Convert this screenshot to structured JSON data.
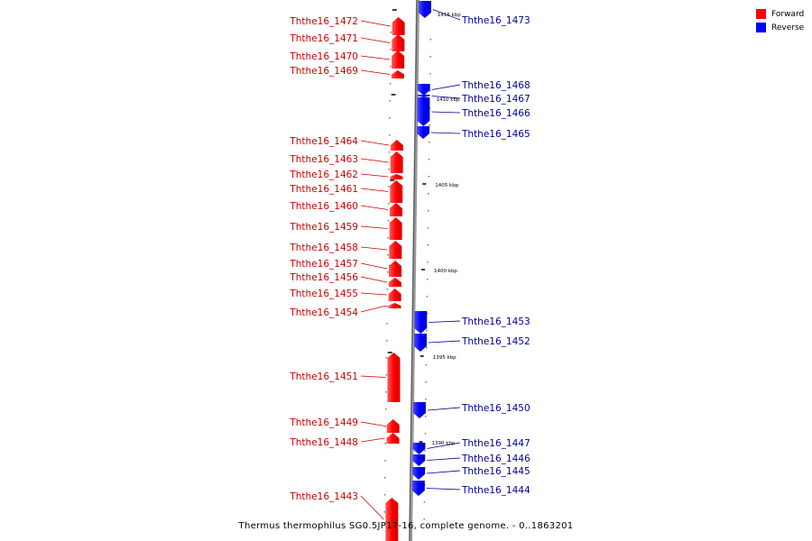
{
  "caption": "Thermus thermophilus SG0.5JP17-16, complete genome. - 0..1863201",
  "legend": [
    {
      "label": "Forward",
      "color": "#ff0000"
    },
    {
      "label": "Reverse",
      "color": "#0000ff"
    }
  ],
  "colors": {
    "forward": "#ff0000",
    "reverse": "#0000ff",
    "forward_label": "#cc0000",
    "reverse_label": "#000099"
  },
  "ticks": [
    "1415 kbp",
    "1410 kbp",
    "1405 kbp",
    "1400 kbp",
    "1395 kbp",
    "1390 kbp"
  ],
  "genes": [
    {
      "name": "Ththe16_1473",
      "strand": "reverse"
    },
    {
      "name": "Ththe16_1472",
      "strand": "forward"
    },
    {
      "name": "Ththe16_1471",
      "strand": "forward"
    },
    {
      "name": "Ththe16_1470",
      "strand": "forward"
    },
    {
      "name": "Ththe16_1469",
      "strand": "forward"
    },
    {
      "name": "Ththe16_1468",
      "strand": "reverse"
    },
    {
      "name": "Ththe16_1467",
      "strand": "reverse"
    },
    {
      "name": "Ththe16_1466",
      "strand": "reverse"
    },
    {
      "name": "Ththe16_1465",
      "strand": "reverse"
    },
    {
      "name": "Ththe16_1464",
      "strand": "forward"
    },
    {
      "name": "Ththe16_1463",
      "strand": "forward"
    },
    {
      "name": "Ththe16_1462",
      "strand": "forward"
    },
    {
      "name": "Ththe16_1461",
      "strand": "forward"
    },
    {
      "name": "Ththe16_1460",
      "strand": "forward"
    },
    {
      "name": "Ththe16_1459",
      "strand": "forward"
    },
    {
      "name": "Ththe16_1458",
      "strand": "forward"
    },
    {
      "name": "Ththe16_1457",
      "strand": "forward"
    },
    {
      "name": "Ththe16_1456",
      "strand": "forward"
    },
    {
      "name": "Ththe16_1455",
      "strand": "forward"
    },
    {
      "name": "Ththe16_1454",
      "strand": "forward"
    },
    {
      "name": "Ththe16_1453",
      "strand": "reverse"
    },
    {
      "name": "Ththe16_1452",
      "strand": "reverse"
    },
    {
      "name": "Ththe16_1451",
      "strand": "forward"
    },
    {
      "name": "Ththe16_1450",
      "strand": "reverse"
    },
    {
      "name": "Ththe16_1449",
      "strand": "forward"
    },
    {
      "name": "Ththe16_1448",
      "strand": "forward"
    },
    {
      "name": "Ththe16_1447",
      "strand": "reverse"
    },
    {
      "name": "Ththe16_1446",
      "strand": "reverse"
    },
    {
      "name": "Ththe16_1445",
      "strand": "reverse"
    },
    {
      "name": "Ththe16_1444",
      "strand": "reverse"
    },
    {
      "name": "Ththe16_1443",
      "strand": "forward"
    }
  ]
}
